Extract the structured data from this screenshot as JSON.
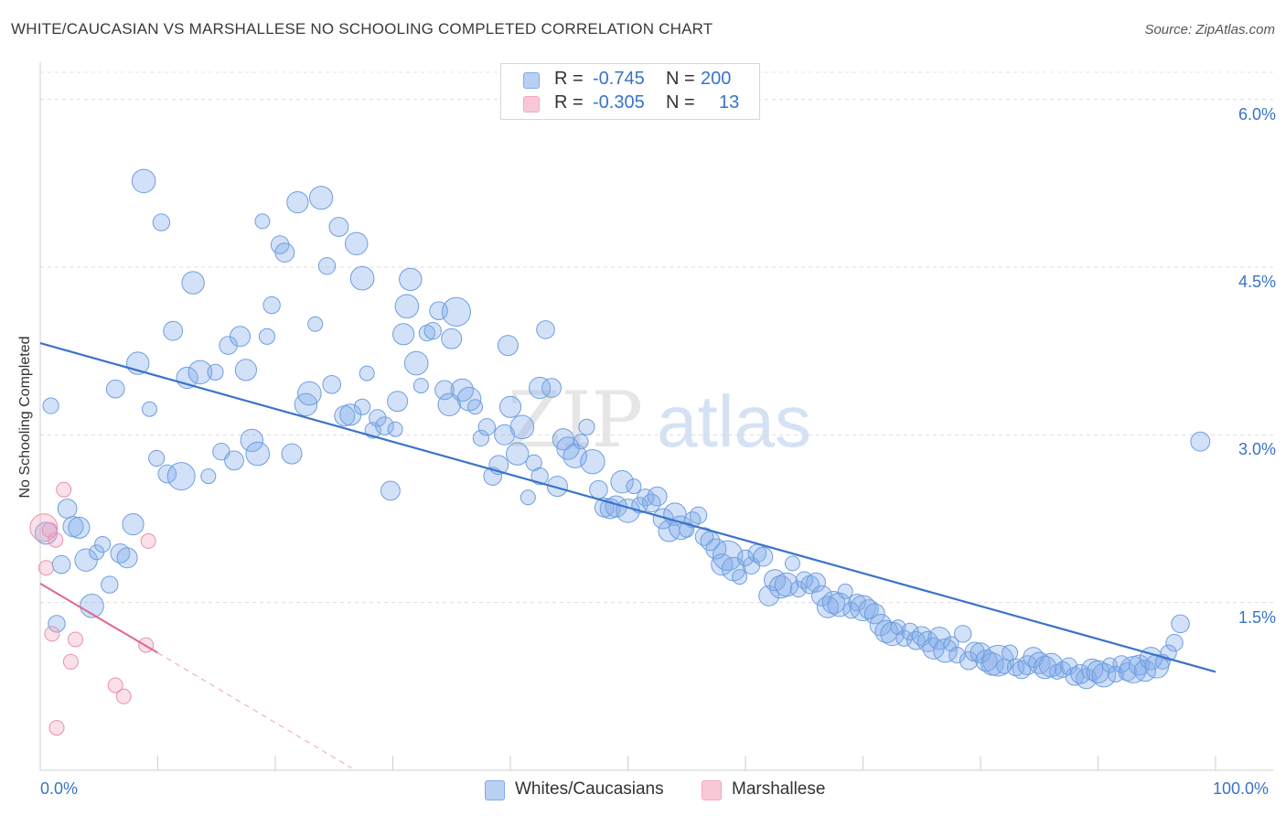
{
  "header": {
    "title": "WHITE/CAUCASIAN VS MARSHALLESE NO SCHOOLING COMPLETED CORRELATION CHART",
    "source": "Source: ZipAtlas.com"
  },
  "watermark": {
    "part1": "ZIP",
    "part2": "atlas"
  },
  "stats": [
    {
      "r_label": "R =",
      "r_value": "-0.745",
      "n_label": "N =",
      "n_value": "200"
    },
    {
      "r_label": "R =",
      "r_value": "-0.305",
      "n_label": "N =",
      "n_value": "13"
    }
  ],
  "chart_data": {
    "type": "scatter",
    "title": "WHITE/CAUCASIAN VS MARSHALLESE NO SCHOOLING COMPLETED CORRELATION CHART",
    "xlabel": "",
    "ylabel": "No Schooling Completed",
    "xlim": [
      0,
      100
    ],
    "ylim": [
      0,
      6.3
    ],
    "x_tick_labels": [
      "0.0%",
      "100.0%"
    ],
    "y_ticks": [
      1.5,
      3.0,
      4.5,
      6.0
    ],
    "y_tick_labels": [
      "1.5%",
      "3.0%",
      "4.5%",
      "6.0%"
    ],
    "grid": "horizontal dashed",
    "legend_position": "bottom-center",
    "colors": {
      "white": "#7fa9e8",
      "white_line": "#3a73c9",
      "marsh": "#f2a7bf",
      "marsh_line": "#e0688f"
    },
    "series": [
      {
        "name": "Whites/Caucasians",
        "color": "#7fa9e8",
        "trend": {
          "x": [
            0,
            100
          ],
          "y": [
            3.82,
            0.88
          ]
        },
        "points": [
          [
            0.5,
            2.12
          ],
          [
            0.9,
            3.26
          ],
          [
            1.4,
            1.31
          ],
          [
            1.8,
            1.84
          ],
          [
            2.3,
            2.34
          ],
          [
            2.8,
            2.18
          ],
          [
            3.3,
            2.17
          ],
          [
            3.9,
            1.88
          ],
          [
            4.4,
            1.47
          ],
          [
            4.8,
            1.95
          ],
          [
            5.3,
            2.02
          ],
          [
            5.9,
            1.66
          ],
          [
            6.4,
            3.41
          ],
          [
            6.8,
            1.94
          ],
          [
            7.4,
            1.9
          ],
          [
            7.9,
            2.2
          ],
          [
            8.3,
            3.64
          ],
          [
            8.8,
            5.27
          ],
          [
            9.3,
            3.23
          ],
          [
            9.9,
            2.79
          ],
          [
            10.3,
            4.9
          ],
          [
            10.8,
            2.65
          ],
          [
            11.3,
            3.93
          ],
          [
            12.0,
            2.63
          ],
          [
            12.5,
            3.51
          ],
          [
            13.0,
            4.36
          ],
          [
            13.6,
            3.56
          ],
          [
            14.3,
            2.63
          ],
          [
            14.9,
            3.56
          ],
          [
            15.4,
            2.85
          ],
          [
            16.0,
            3.8
          ],
          [
            16.5,
            2.77
          ],
          [
            17.0,
            3.88
          ],
          [
            17.5,
            3.58
          ],
          [
            18.0,
            2.95
          ],
          [
            18.5,
            2.83
          ],
          [
            18.9,
            4.91
          ],
          [
            19.3,
            3.88
          ],
          [
            19.7,
            4.16
          ],
          [
            20.4,
            4.7
          ],
          [
            20.8,
            4.63
          ],
          [
            21.4,
            2.83
          ],
          [
            21.9,
            5.08
          ],
          [
            22.6,
            3.27
          ],
          [
            22.9,
            3.37
          ],
          [
            23.4,
            3.99
          ],
          [
            23.9,
            5.12
          ],
          [
            24.4,
            4.51
          ],
          [
            24.8,
            3.45
          ],
          [
            25.4,
            4.86
          ],
          [
            25.9,
            3.17
          ],
          [
            26.4,
            3.18
          ],
          [
            26.9,
            4.71
          ],
          [
            27.4,
            4.4
          ],
          [
            27.8,
            3.55
          ],
          [
            28.3,
            3.04
          ],
          [
            28.7,
            3.15
          ],
          [
            29.3,
            3.08
          ],
          [
            29.8,
            2.5
          ],
          [
            30.4,
            3.3
          ],
          [
            30.9,
            3.9
          ],
          [
            31.5,
            4.39
          ],
          [
            32.0,
            3.64
          ],
          [
            32.4,
            3.44
          ],
          [
            32.9,
            3.91
          ],
          [
            33.4,
            3.93
          ],
          [
            33.9,
            4.11
          ],
          [
            34.4,
            3.4
          ],
          [
            35.0,
            3.86
          ],
          [
            35.4,
            4.1
          ],
          [
            35.9,
            3.4
          ],
          [
            36.5,
            3.32
          ],
          [
            37.0,
            3.25
          ],
          [
            37.5,
            2.97
          ],
          [
            38.0,
            3.07
          ],
          [
            38.5,
            2.63
          ],
          [
            39.0,
            2.73
          ],
          [
            39.5,
            3.0
          ],
          [
            40.0,
            3.25
          ],
          [
            40.6,
            2.83
          ],
          [
            41.0,
            3.07
          ],
          [
            41.5,
            2.44
          ],
          [
            42.0,
            2.75
          ],
          [
            42.5,
            2.63
          ],
          [
            43.0,
            3.94
          ],
          [
            43.5,
            3.42
          ],
          [
            44.0,
            2.54
          ],
          [
            44.5,
            2.96
          ],
          [
            44.9,
            2.88
          ],
          [
            45.5,
            2.81
          ],
          [
            46.0,
            2.94
          ],
          [
            46.5,
            3.07
          ],
          [
            47.0,
            2.76
          ],
          [
            47.5,
            2.51
          ],
          [
            48.0,
            2.35
          ],
          [
            48.5,
            2.34
          ],
          [
            49.0,
            2.36
          ],
          [
            49.5,
            2.58
          ],
          [
            50.0,
            2.32
          ],
          [
            50.5,
            2.54
          ],
          [
            51.0,
            2.37
          ],
          [
            51.5,
            2.44
          ],
          [
            52.0,
            2.39
          ],
          [
            52.5,
            2.45
          ],
          [
            53.0,
            2.25
          ],
          [
            53.5,
            2.14
          ],
          [
            54.0,
            2.29
          ],
          [
            54.5,
            2.17
          ],
          [
            55.0,
            2.15
          ],
          [
            55.5,
            2.24
          ],
          [
            56.0,
            2.28
          ],
          [
            56.5,
            2.09
          ],
          [
            57.0,
            2.05
          ],
          [
            57.5,
            1.98
          ],
          [
            58.0,
            1.84
          ],
          [
            58.5,
            1.92
          ],
          [
            59.0,
            1.8
          ],
          [
            59.5,
            1.73
          ],
          [
            60.0,
            1.9
          ],
          [
            60.5,
            1.83
          ],
          [
            61.0,
            1.94
          ],
          [
            61.5,
            1.91
          ],
          [
            62.0,
            1.56
          ],
          [
            62.5,
            1.7
          ],
          [
            63.0,
            1.64
          ],
          [
            63.5,
            1.66
          ],
          [
            64.0,
            1.85
          ],
          [
            64.5,
            1.62
          ],
          [
            65.0,
            1.7
          ],
          [
            65.5,
            1.66
          ],
          [
            66.0,
            1.68
          ],
          [
            66.5,
            1.56
          ],
          [
            67.0,
            1.46
          ],
          [
            67.5,
            1.5
          ],
          [
            68.0,
            1.48
          ],
          [
            68.5,
            1.6
          ],
          [
            69.0,
            1.43
          ],
          [
            69.5,
            1.5
          ],
          [
            70.0,
            1.45
          ],
          [
            70.5,
            1.44
          ],
          [
            71.0,
            1.4
          ],
          [
            71.5,
            1.3
          ],
          [
            72.0,
            1.24
          ],
          [
            72.5,
            1.22
          ],
          [
            73.0,
            1.28
          ],
          [
            73.5,
            1.18
          ],
          [
            74.0,
            1.24
          ],
          [
            74.5,
            1.16
          ],
          [
            75.0,
            1.2
          ],
          [
            75.5,
            1.15
          ],
          [
            76.0,
            1.09
          ],
          [
            76.5,
            1.18
          ],
          [
            77.0,
            1.07
          ],
          [
            77.5,
            1.13
          ],
          [
            78.0,
            1.03
          ],
          [
            78.5,
            1.22
          ],
          [
            79.0,
            0.98
          ],
          [
            79.5,
            1.06
          ],
          [
            80.0,
            1.05
          ],
          [
            80.5,
            0.98
          ],
          [
            81.0,
            0.95
          ],
          [
            81.5,
            0.98
          ],
          [
            82.0,
            0.93
          ],
          [
            82.5,
            1.05
          ],
          [
            83.0,
            0.92
          ],
          [
            83.5,
            0.9
          ],
          [
            84.0,
            0.94
          ],
          [
            84.5,
            1.01
          ],
          [
            85.0,
            0.96
          ],
          [
            85.5,
            0.92
          ],
          [
            86.0,
            0.94
          ],
          [
            86.5,
            0.88
          ],
          [
            87.0,
            0.9
          ],
          [
            87.5,
            0.93
          ],
          [
            88.0,
            0.84
          ],
          [
            88.5,
            0.86
          ],
          [
            89.0,
            0.82
          ],
          [
            89.5,
            0.9
          ],
          [
            90.0,
            0.88
          ],
          [
            90.5,
            0.85
          ],
          [
            91.0,
            0.94
          ],
          [
            91.5,
            0.86
          ],
          [
            92.0,
            0.95
          ],
          [
            92.5,
            0.88
          ],
          [
            93.0,
            0.9
          ],
          [
            93.5,
            0.94
          ],
          [
            94.0,
            0.89
          ],
          [
            94.5,
            1.0
          ],
          [
            95.0,
            0.93
          ],
          [
            95.5,
            0.97
          ],
          [
            96.0,
            1.05
          ],
          [
            96.5,
            1.14
          ],
          [
            97.0,
            1.31
          ],
          [
            98.7,
            2.94
          ],
          [
            39.8,
            3.8
          ],
          [
            42.5,
            3.42
          ],
          [
            34.8,
            3.27
          ],
          [
            31.2,
            4.15
          ],
          [
            30.2,
            3.05
          ],
          [
            27.4,
            3.25
          ]
        ]
      },
      {
        "name": "Marshallese",
        "color": "#f2a7bf",
        "trend": {
          "x": [
            0,
            10
          ],
          "y": [
            1.67,
            1.05
          ]
        },
        "trend_extension": {
          "x": [
            10,
            26.5
          ],
          "y": [
            1.05,
            0.02
          ]
        },
        "points": [
          [
            0.3,
            2.17
          ],
          [
            0.5,
            1.81
          ],
          [
            0.8,
            2.15
          ],
          [
            1.0,
            1.22
          ],
          [
            1.3,
            2.06
          ],
          [
            1.4,
            0.38
          ],
          [
            2.0,
            2.51
          ],
          [
            2.6,
            0.97
          ],
          [
            3.0,
            1.17
          ],
          [
            6.4,
            0.76
          ],
          [
            7.1,
            0.66
          ],
          [
            9.2,
            2.05
          ],
          [
            9.0,
            1.12
          ]
        ]
      }
    ]
  },
  "legend": {
    "items": [
      {
        "label": "Whites/Caucasians"
      },
      {
        "label": "Marshallese"
      }
    ]
  }
}
